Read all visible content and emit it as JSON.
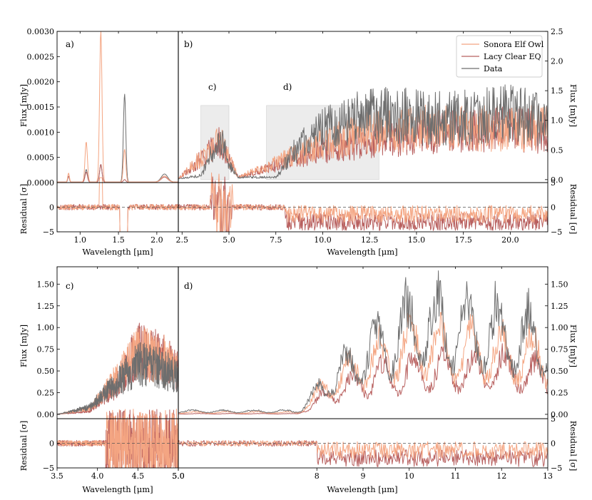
{
  "colors": {
    "sonora": "#f4a582",
    "lacy": "#b8605f",
    "data": "#6e6e6e"
  },
  "legend": {
    "items": [
      {
        "key": "sonora",
        "label": "Sonora Elf Owl"
      },
      {
        "key": "lacy",
        "label": "Lacy Clear EQ"
      },
      {
        "key": "data",
        "label": "Data"
      }
    ]
  },
  "labels": {
    "flux": "Flux [mJy]",
    "residual": "Residual [σ]",
    "wavelength": "Wavelength [μm]"
  },
  "panels": {
    "a": "a)",
    "b": "b)",
    "c": "c)",
    "d": "d)",
    "c_box": "c)",
    "d_box": "d)"
  },
  "chart_data": [
    {
      "id": "a",
      "type": "line",
      "title": "a)",
      "xlabel": "Wavelength [μm]",
      "ylabel": "Flux [mJy]",
      "residual_ylabel": "Residual [σ]",
      "xlim": [
        0.7,
        2.28
      ],
      "ylim": [
        0,
        0.003
      ],
      "residual_ylim": [
        -5,
        5
      ],
      "xticks": [
        "1.0",
        "1.5",
        "2.0"
      ],
      "yticks": [
        "0.0000",
        "0.0005",
        "0.0010",
        "0.0015",
        "0.0020",
        "0.0025",
        "0.0030"
      ],
      "residual_yticks": [
        "−5",
        "0"
      ],
      "series": [
        {
          "name": "Data",
          "peaks": [
            [
              0.85,
              0.00012
            ],
            [
              1.08,
              0.00025
            ],
            [
              1.27,
              0.00035
            ],
            [
              1.58,
              0.00175
            ],
            [
              2.1,
              0.00016
            ]
          ]
        },
        {
          "name": "Sonora Elf Owl",
          "peaks": [
            [
              0.85,
              0.00018
            ],
            [
              1.08,
              0.0008
            ],
            [
              1.27,
              0.003
            ],
            [
              1.58,
              0.00065
            ],
            [
              2.1,
              0.00012
            ]
          ]
        },
        {
          "name": "Lacy Clear EQ",
          "peaks": [
            [
              0.85,
              0.00012
            ],
            [
              1.08,
              0.0002
            ],
            [
              1.27,
              0.00035
            ],
            [
              1.58,
              5e-05
            ],
            [
              2.1,
              0.0001
            ]
          ]
        }
      ]
    },
    {
      "id": "b",
      "type": "line",
      "title": "b)",
      "xlabel": "Wavelength [μm]",
      "ylabel": "Flux [mJy]",
      "residual_ylabel": "Residual [σ]",
      "xlim": [
        2.3,
        22.0
      ],
      "ylim": [
        -0.05,
        2.5
      ],
      "residual_ylim": [
        -5,
        5
      ],
      "xticks": [
        "2.5",
        "5.0",
        "7.5",
        "10.0",
        "12.5",
        "15.0",
        "17.5",
        "20.0"
      ],
      "yticks": [
        "0.0",
        "0.5",
        "1.0",
        "1.5",
        "2.0",
        "2.5"
      ],
      "residual_yticks": [
        "−5",
        "0",
        "5"
      ],
      "highlight_regions": [
        {
          "label": "c)",
          "x": [
            3.5,
            5.0
          ]
        },
        {
          "label": "d)",
          "x": [
            7.0,
            13.0
          ]
        }
      ],
      "series": [
        {
          "name": "Data",
          "envelope": [
            [
              2.3,
              0.02
            ],
            [
              3.5,
              0.08
            ],
            [
              4.2,
              0.6
            ],
            [
              4.6,
              0.9
            ],
            [
              5.0,
              0.3
            ],
            [
              5.5,
              0.05
            ],
            [
              7.5,
              0.05
            ],
            [
              8.5,
              0.6
            ],
            [
              10,
              1.0
            ],
            [
              12,
              1.3
            ],
            [
              14,
              1.3
            ],
            [
              16,
              1.25
            ],
            [
              18,
              1.3
            ],
            [
              20,
              1.35
            ],
            [
              22,
              1.2
            ]
          ]
        },
        {
          "name": "Sonora Elf Owl",
          "envelope": [
            [
              2.3,
              0.02
            ],
            [
              4.5,
              0.8
            ],
            [
              5.5,
              0.05
            ],
            [
              8.5,
              0.5
            ],
            [
              10,
              0.75
            ],
            [
              13,
              1.0
            ],
            [
              15,
              1.05
            ]
          ]
        },
        {
          "name": "Lacy Clear EQ",
          "envelope": [
            [
              2.3,
              0.02
            ],
            [
              4.5,
              0.75
            ],
            [
              5.5,
              0.05
            ],
            [
              8.5,
              0.4
            ],
            [
              10,
              0.6
            ],
            [
              13,
              0.8
            ],
            [
              16,
              0.95
            ],
            [
              20,
              1.05
            ],
            [
              22,
              0.95
            ]
          ]
        }
      ]
    },
    {
      "id": "c",
      "type": "line",
      "title": "c)",
      "xlabel": "Wavelength [μm]",
      "ylabel": "Flux [mJy]",
      "residual_ylabel": "Residual [σ]",
      "xlim": [
        3.5,
        5.0
      ],
      "ylim": [
        -0.05,
        1.7
      ],
      "residual_ylim": [
        -5,
        5
      ],
      "xticks": [
        "3.5",
        "4.0",
        "4.5",
        "5.0"
      ],
      "yticks": [
        "0.00",
        "0.25",
        "0.50",
        "0.75",
        "1.00",
        "1.25",
        "1.50"
      ],
      "residual_yticks": [
        "−5",
        "0"
      ],
      "series": [
        {
          "name": "Data",
          "envelope": [
            [
              3.5,
              0.0
            ],
            [
              3.9,
              0.1
            ],
            [
              4.2,
              0.4
            ],
            [
              4.5,
              0.7
            ],
            [
              4.8,
              0.65
            ],
            [
              5.0,
              0.5
            ]
          ]
        },
        {
          "name": "Sonora Elf Owl",
          "envelope": [
            [
              3.5,
              0.0
            ],
            [
              3.9,
              0.08
            ],
            [
              4.2,
              0.45
            ],
            [
              4.5,
              0.85
            ],
            [
              4.8,
              0.8
            ],
            [
              5.0,
              0.55
            ]
          ]
        },
        {
          "name": "Lacy Clear EQ",
          "envelope": [
            [
              3.5,
              0.0
            ],
            [
              3.9,
              0.04
            ],
            [
              4.2,
              0.35
            ],
            [
              4.5,
              0.9
            ],
            [
              4.8,
              0.8
            ],
            [
              5.0,
              0.6
            ]
          ]
        }
      ]
    },
    {
      "id": "d",
      "type": "line",
      "title": "d)",
      "xlabel": "Wavelength [μm]",
      "ylabel": "Flux [mJy]",
      "residual_ylabel": "Residual [σ]",
      "xlim": [
        5.0,
        13.0
      ],
      "ylim": [
        -0.05,
        1.7
      ],
      "residual_ylim": [
        -5,
        5
      ],
      "xticks": [
        "5.0",
        "8",
        "9",
        "10",
        "11",
        "12",
        "13"
      ],
      "yticks": [
        "0.00",
        "0.25",
        "0.50",
        "0.75",
        "1.00",
        "1.25",
        "1.50"
      ],
      "residual_yticks": [
        "−5",
        "0",
        "5"
      ],
      "series": [
        {
          "name": "Data",
          "envelope": [
            [
              5.0,
              0.05
            ],
            [
              7.6,
              0.05
            ],
            [
              8.2,
              0.5
            ],
            [
              9.0,
              0.9
            ],
            [
              10.2,
              1.45
            ],
            [
              11.0,
              1.35
            ],
            [
              12.0,
              1.35
            ],
            [
              13.0,
              1.15
            ]
          ]
        },
        {
          "name": "Sonora Elf Owl",
          "envelope": [
            [
              5.0,
              0.03
            ],
            [
              7.6,
              0.03
            ],
            [
              8.2,
              0.45
            ],
            [
              9.0,
              0.8
            ],
            [
              10.2,
              1.12
            ],
            [
              11.0,
              1.0
            ],
            [
              12.0,
              1.0
            ],
            [
              13.0,
              0.9
            ]
          ]
        },
        {
          "name": "Lacy Clear EQ",
          "envelope": [
            [
              5.0,
              0.01
            ],
            [
              7.6,
              0.01
            ],
            [
              8.2,
              0.3
            ],
            [
              9.0,
              0.55
            ],
            [
              10.2,
              0.7
            ],
            [
              11.0,
              0.7
            ],
            [
              12.0,
              0.75
            ],
            [
              13.0,
              0.6
            ]
          ]
        }
      ]
    }
  ]
}
